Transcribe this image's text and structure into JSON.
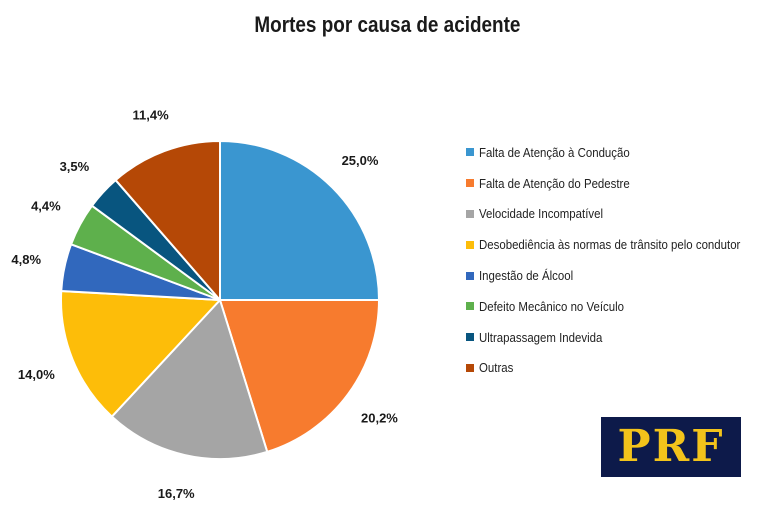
{
  "chart_data": {
    "type": "pie",
    "title": "Mortes por causa de acidente",
    "categories": [
      "Falta de Atenção à Condução",
      "Falta de Atenção do Pedestre",
      "Velocidade Incompatível",
      "Desobediência às normas de trânsito pelo condutor",
      "Ingestão de Álcool",
      "Defeito Mecânico no Veículo",
      "Ultrapassagem Indevida",
      "Outras"
    ],
    "values": [
      25.0,
      20.2,
      16.7,
      14.0,
      4.8,
      4.4,
      3.5,
      11.4
    ],
    "data_labels": [
      "25,0%",
      "20,2%",
      "16,7%",
      "14,0%",
      "4,8%",
      "4,4%",
      "3,5%",
      "11,4%"
    ],
    "colors": [
      "#3a96d0",
      "#f77b2e",
      "#a5a5a5",
      "#fdbd09",
      "#3168bd",
      "#5eb04c",
      "#08557f",
      "#b54806"
    ],
    "legend_position": "right"
  },
  "logo": {
    "text": "PRF",
    "colors": {
      "background": "#0d1a4a",
      "text": "#f2c31b"
    }
  }
}
